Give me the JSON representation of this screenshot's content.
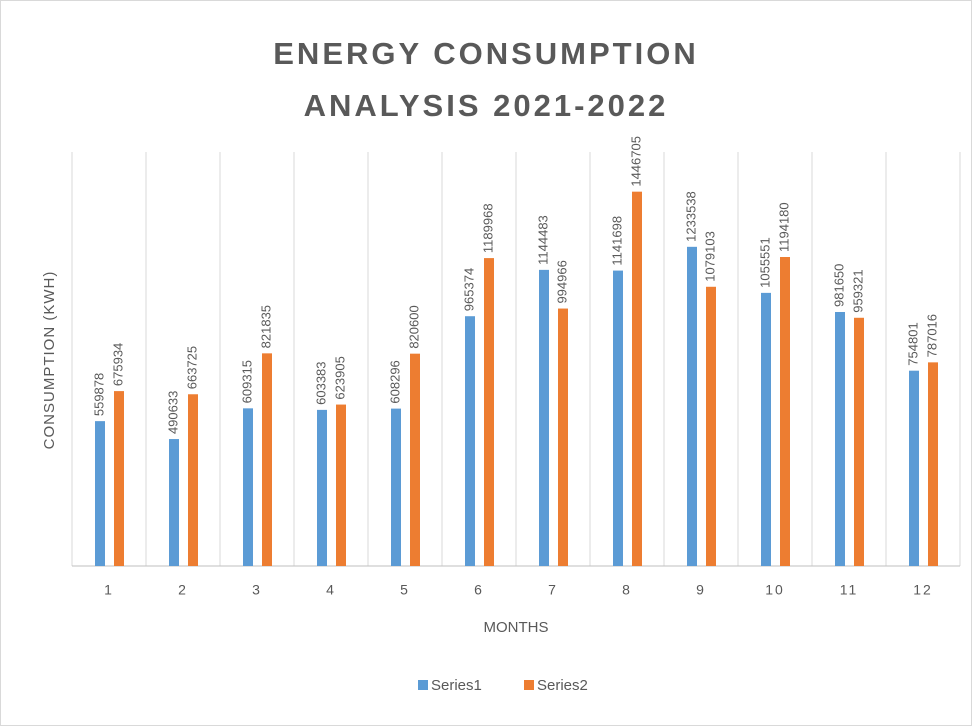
{
  "chart_data": {
    "type": "bar",
    "title": "ENERGY CONSUMPTION ANALYSIS 2021-2022",
    "x_label": "MONTHS",
    "y_label": "CONSUMPTION (KWH)",
    "categories": [
      1,
      2,
      3,
      4,
      5,
      6,
      7,
      8,
      9,
      10,
      11,
      12
    ],
    "series": [
      {
        "name": "Series1",
        "color": "#5b9bd5",
        "values": [
          559878,
          490633,
          609315,
          603383,
          608296,
          965374,
          1144483,
          1141698,
          1233538,
          1055551,
          981650,
          754801
        ]
      },
      {
        "name": "Series2",
        "color": "#ed7d31",
        "values": [
          675934,
          663725,
          821835,
          623905,
          820600,
          1189968,
          994966,
          1446705,
          1079103,
          1194180,
          959321,
          787016
        ]
      }
    ],
    "ylim": [
      0,
      1600000
    ],
    "grid": true,
    "legend": "bottom"
  }
}
